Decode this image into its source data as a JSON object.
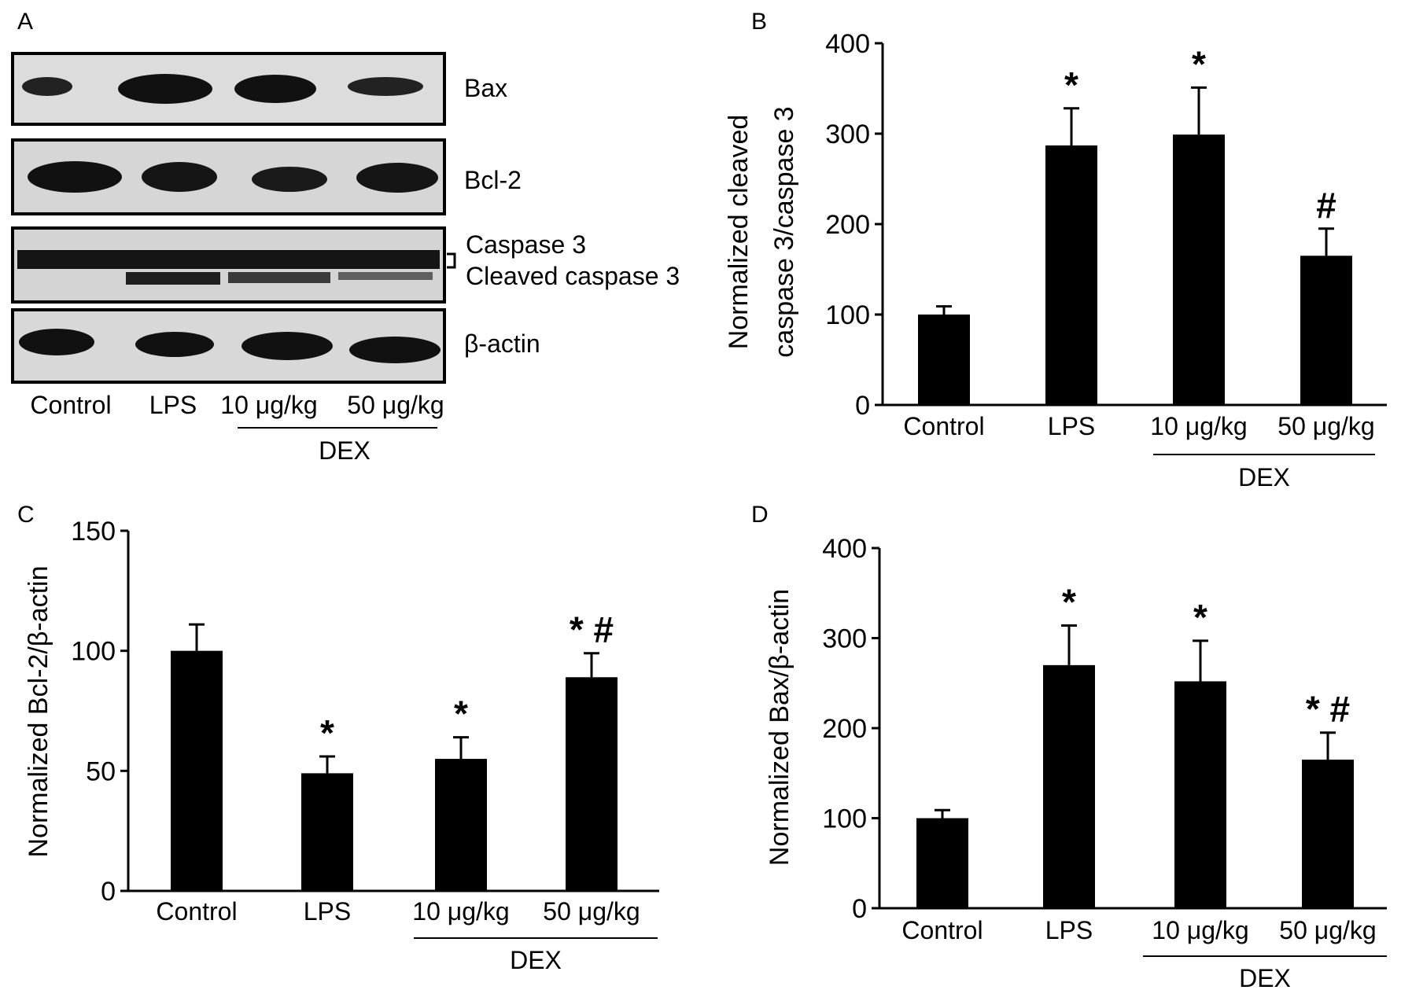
{
  "colors": {
    "bar": "#000000",
    "axis": "#000000",
    "background": "#ffffff",
    "blot_bg": "#d8d8d8",
    "band": "#0d0d0d"
  },
  "panel_a": {
    "letter": "A",
    "blots": [
      {
        "label": "Bax"
      },
      {
        "label": "Bcl-2"
      },
      {
        "label_upper": "Caspase 3",
        "label_lower": "Cleaved caspase 3"
      },
      {
        "label": "β-actin"
      }
    ],
    "lanes": [
      "Control",
      "LPS",
      "10 μg/kg",
      "50 μg/kg"
    ],
    "group_label": "DEX"
  },
  "chart_data": [
    {
      "panel": "B",
      "type": "bar",
      "ylabel": [
        "Normalized cleaved",
        "caspase 3/caspase 3"
      ],
      "categories": [
        "Control",
        "LPS",
        "10 μg/kg",
        "50 μg/kg"
      ],
      "values": [
        100,
        287,
        299,
        165
      ],
      "errors": [
        9,
        41,
        52,
        30
      ],
      "annotations": [
        "",
        "*",
        "*",
        "#"
      ],
      "ylim": [
        0,
        400
      ],
      "yticks": [
        "0",
        "100",
        "200",
        "300",
        "400"
      ],
      "group_label": "DEX"
    },
    {
      "panel": "C",
      "type": "bar",
      "ylabel": [
        "Normalized Bcl-2/β-actin"
      ],
      "categories": [
        "Control",
        "LPS",
        "10 μg/kg",
        "50 μg/kg"
      ],
      "values": [
        100,
        49,
        55,
        89
      ],
      "errors": [
        11,
        7,
        9,
        10
      ],
      "annotations": [
        "",
        "*",
        "*",
        "* #"
      ],
      "ylim": [
        0,
        150
      ],
      "yticks": [
        "0",
        "50",
        "100",
        "150"
      ],
      "group_label": "DEX"
    },
    {
      "panel": "D",
      "type": "bar",
      "ylabel": [
        "Normalized Bax/β-actin"
      ],
      "categories": [
        "Control",
        "LPS",
        "10 μg/kg",
        "50 μg/kg"
      ],
      "values": [
        100,
        270,
        252,
        165
      ],
      "errors": [
        9,
        44,
        45,
        30
      ],
      "annotations": [
        "",
        "*",
        "*",
        "* #"
      ],
      "ylim": [
        0,
        400
      ],
      "yticks": [
        "0",
        "100",
        "200",
        "300",
        "400"
      ],
      "group_label": "DEX"
    }
  ]
}
